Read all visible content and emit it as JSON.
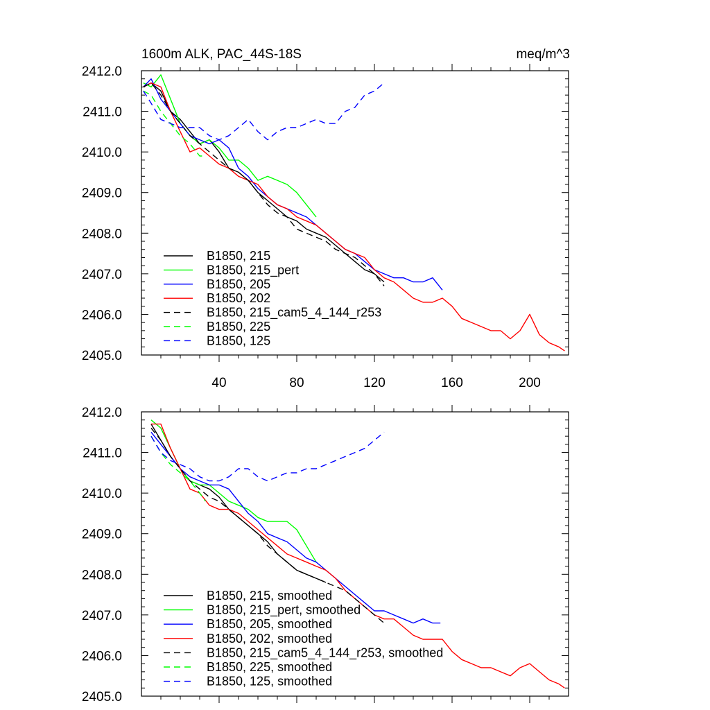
{
  "chart_data": [
    {
      "type": "line",
      "title": "1600m ALK, PAC_44S-18S",
      "units": "meq/m^3",
      "xlabel": "",
      "ylabel": "",
      "xlim": [
        0,
        220
      ],
      "ylim": [
        2405.0,
        2412.0
      ],
      "xticks": [
        40,
        80,
        120,
        160,
        200
      ],
      "xtick_labels": [
        "40",
        "80",
        "120",
        "160",
        "200"
      ],
      "yticks": [
        2405.0,
        2406.0,
        2407.0,
        2408.0,
        2409.0,
        2410.0,
        2411.0,
        2412.0
      ],
      "ytick_labels": [
        "2405.0",
        "2406.0",
        "2407.0",
        "2408.0",
        "2409.0",
        "2410.0",
        "2411.0",
        "2412.0"
      ],
      "legend_position": "bottom-left",
      "series": [
        {
          "name": "B1850, 215",
          "color": "#000000",
          "dash": "solid",
          "x": [
            1,
            5,
            10,
            15,
            20,
            25,
            30,
            35,
            40,
            45,
            50,
            55,
            60,
            65,
            70,
            75,
            80,
            85,
            90,
            95,
            100,
            105,
            110,
            115,
            120,
            125
          ],
          "y": [
            2411.6,
            2411.7,
            2411.5,
            2411.0,
            2410.8,
            2410.5,
            2410.2,
            2410.3,
            2410.0,
            2409.6,
            2409.5,
            2409.3,
            2409.0,
            2408.8,
            2408.6,
            2408.4,
            2408.3,
            2408.1,
            2408.0,
            2407.9,
            2407.7,
            2407.5,
            2407.3,
            2407.1,
            2407.0,
            2406.8
          ]
        },
        {
          "name": "B1850, 215_pert",
          "color": "#00ff00",
          "dash": "solid",
          "x": [
            1,
            5,
            10,
            15,
            20,
            25,
            30,
            35,
            40,
            45,
            50,
            55,
            60,
            65,
            70,
            75,
            80,
            85,
            90
          ],
          "y": [
            2411.7,
            2411.6,
            2411.9,
            2411.3,
            2410.7,
            2410.4,
            2410.2,
            2410.3,
            2410.1,
            2409.8,
            2409.8,
            2409.6,
            2409.3,
            2409.4,
            2409.3,
            2409.2,
            2409.0,
            2408.7,
            2408.4
          ]
        },
        {
          "name": "B1850, 205",
          "color": "#0000ff",
          "dash": "solid",
          "x": [
            1,
            5,
            10,
            15,
            20,
            25,
            30,
            35,
            40,
            45,
            50,
            55,
            60,
            65,
            70,
            75,
            80,
            85,
            90,
            95,
            100,
            105,
            110,
            115,
            120,
            125,
            130,
            135,
            140,
            145,
            150,
            155
          ],
          "y": [
            2411.6,
            2411.8,
            2411.3,
            2411.0,
            2410.7,
            2410.4,
            2410.3,
            2410.2,
            2410.3,
            2410.1,
            2409.6,
            2409.4,
            2409.1,
            2408.9,
            2408.7,
            2408.6,
            2408.5,
            2408.4,
            2408.2,
            2408.0,
            2407.8,
            2407.6,
            2407.5,
            2407.3,
            2407.1,
            2407.0,
            2406.9,
            2406.9,
            2406.8,
            2406.8,
            2406.9,
            2406.6
          ]
        },
        {
          "name": "B1850, 202",
          "color": "#ff0000",
          "dash": "solid",
          "x": [
            1,
            5,
            10,
            15,
            20,
            25,
            30,
            35,
            40,
            45,
            50,
            55,
            60,
            65,
            70,
            75,
            80,
            85,
            90,
            95,
            100,
            105,
            110,
            115,
            120,
            125,
            130,
            135,
            140,
            145,
            150,
            155,
            160,
            165,
            170,
            175,
            180,
            185,
            190,
            195,
            200,
            205,
            210,
            215,
            218
          ],
          "y": [
            2411.6,
            2411.7,
            2411.6,
            2411.0,
            2410.5,
            2410.0,
            2410.1,
            2409.9,
            2409.7,
            2409.6,
            2409.4,
            2409.3,
            2409.2,
            2408.9,
            2408.7,
            2408.6,
            2408.4,
            2408.3,
            2408.2,
            2408.0,
            2407.8,
            2407.6,
            2407.5,
            2407.4,
            2407.1,
            2406.9,
            2406.8,
            2406.6,
            2406.4,
            2406.3,
            2406.3,
            2406.4,
            2406.2,
            2405.9,
            2405.8,
            2405.7,
            2405.6,
            2405.6,
            2405.4,
            2405.6,
            2406.0,
            2405.5,
            2405.3,
            2405.2,
            2405.1
          ]
        },
        {
          "name": "B1850, 215_cam5_4_144_r253",
          "color": "#000000",
          "dash": "dashed",
          "x": [
            1,
            5,
            10,
            15,
            20,
            25,
            30,
            35,
            40,
            45,
            50,
            55,
            60,
            65,
            70,
            75,
            80,
            85,
            90,
            95,
            100,
            105,
            110,
            115,
            120,
            125
          ],
          "y": [
            2411.6,
            2411.7,
            2411.4,
            2411.0,
            2410.7,
            2410.4,
            2410.2,
            2410.0,
            2409.8,
            2409.6,
            2409.5,
            2409.3,
            2409.0,
            2408.7,
            2408.5,
            2408.4,
            2408.1,
            2408.0,
            2407.9,
            2407.8,
            2407.6,
            2407.5,
            2407.4,
            2407.2,
            2407.0,
            2406.7
          ]
        },
        {
          "name": "B1850, 225",
          "color": "#00ff00",
          "dash": "dashed",
          "x": [
            1,
            5,
            10,
            15,
            20,
            25,
            30,
            32
          ],
          "y": [
            2411.5,
            2411.4,
            2411.0,
            2410.7,
            2410.4,
            2410.2,
            2409.9,
            2409.9
          ]
        },
        {
          "name": "B1850, 125",
          "color": "#0000ff",
          "dash": "dashed",
          "x": [
            1,
            5,
            10,
            15,
            20,
            25,
            30,
            35,
            40,
            45,
            50,
            55,
            60,
            65,
            70,
            75,
            80,
            85,
            90,
            95,
            100,
            105,
            110,
            115,
            120,
            125
          ],
          "y": [
            2411.5,
            2411.2,
            2410.8,
            2410.7,
            2410.6,
            2410.6,
            2410.6,
            2410.4,
            2410.3,
            2410.4,
            2410.6,
            2410.8,
            2410.5,
            2410.3,
            2410.5,
            2410.6,
            2410.6,
            2410.7,
            2410.8,
            2410.7,
            2410.7,
            2411.0,
            2411.1,
            2411.4,
            2411.5,
            2411.7
          ]
        }
      ]
    },
    {
      "type": "line",
      "title": "",
      "xlabel": "",
      "ylabel": "",
      "xlim": [
        0,
        220
      ],
      "ylim": [
        2405.0,
        2412.0
      ],
      "xticks": [
        40,
        80,
        120,
        160,
        200
      ],
      "yticks": [
        2405.0,
        2406.0,
        2407.0,
        2408.0,
        2409.0,
        2410.0,
        2411.0,
        2412.0
      ],
      "ytick_labels": [
        "2405.0",
        "2406.0",
        "2407.0",
        "2408.0",
        "2409.0",
        "2410.0",
        "2411.0",
        "2412.0"
      ],
      "legend_position": "bottom-left",
      "series": [
        {
          "name": "B1850, 215, smoothed",
          "color": "#000000",
          "dash": "solid",
          "x": [
            5,
            10,
            15,
            20,
            25,
            30,
            35,
            40,
            45,
            50,
            55,
            60,
            65,
            70,
            75,
            80,
            85,
            90,
            95
          ],
          "y": [
            2411.7,
            2411.3,
            2410.9,
            2410.6,
            2410.3,
            2410.2,
            2410.1,
            2409.9,
            2409.6,
            2409.4,
            2409.2,
            2409.0,
            2408.8,
            2408.5,
            2408.3,
            2408.1,
            2408.0,
            2407.9,
            2407.8
          ]
        },
        {
          "name": "B1850, 215_pert, smoothed",
          "color": "#00ff00",
          "dash": "solid",
          "x": [
            5,
            10,
            15,
            20,
            25,
            30,
            35,
            40,
            45,
            50,
            55,
            60,
            65,
            70,
            75,
            80,
            85,
            90
          ],
          "y": [
            2411.8,
            2411.6,
            2411.1,
            2410.6,
            2410.3,
            2410.2,
            2410.2,
            2410.0,
            2409.8,
            2409.7,
            2409.6,
            2409.4,
            2409.3,
            2409.3,
            2409.3,
            2409.1,
            2408.7,
            2408.3
          ]
        },
        {
          "name": "B1850, 205, smoothed",
          "color": "#0000ff",
          "dash": "solid",
          "x": [
            5,
            10,
            15,
            20,
            25,
            30,
            35,
            40,
            45,
            50,
            55,
            60,
            65,
            70,
            75,
            80,
            85,
            90,
            95,
            100,
            105,
            110,
            115,
            120,
            125,
            130,
            135,
            140,
            145,
            150,
            154
          ],
          "y": [
            2411.5,
            2411.2,
            2410.9,
            2410.6,
            2410.4,
            2410.3,
            2410.2,
            2410.2,
            2410.1,
            2409.8,
            2409.5,
            2409.3,
            2409.0,
            2408.9,
            2408.8,
            2408.6,
            2408.4,
            2408.3,
            2408.1,
            2407.9,
            2407.7,
            2407.5,
            2407.3,
            2407.1,
            2407.1,
            2407.0,
            2406.9,
            2406.8,
            2406.9,
            2406.8,
            2406.8
          ]
        },
        {
          "name": "B1850, 202, smoothed",
          "color": "#ff0000",
          "dash": "solid",
          "x": [
            5,
            10,
            15,
            20,
            25,
            30,
            35,
            40,
            45,
            50,
            55,
            60,
            65,
            70,
            75,
            80,
            85,
            90,
            95,
            100,
            105,
            110,
            115,
            120,
            125,
            130,
            135,
            140,
            145,
            150,
            155,
            160,
            165,
            170,
            175,
            180,
            185,
            190,
            195,
            200,
            205,
            210,
            215,
            218
          ],
          "y": [
            2411.7,
            2411.7,
            2411.1,
            2410.6,
            2410.1,
            2410.0,
            2409.7,
            2409.6,
            2409.6,
            2409.5,
            2409.3,
            2409.1,
            2408.9,
            2408.7,
            2408.5,
            2408.4,
            2408.3,
            2408.2,
            2408.1,
            2407.9,
            2407.6,
            2407.4,
            2407.2,
            2407.0,
            2406.9,
            2406.9,
            2406.7,
            2406.5,
            2406.4,
            2406.4,
            2406.4,
            2406.1,
            2405.9,
            2405.8,
            2405.7,
            2405.7,
            2405.6,
            2405.5,
            2405.7,
            2405.8,
            2405.6,
            2405.4,
            2405.3,
            2405.2
          ]
        },
        {
          "name": "B1850, 215_cam5_4_144_r253, smoothed",
          "color": "#000000",
          "dash": "dashed",
          "x": [
            5,
            10,
            15,
            20,
            25,
            30,
            35,
            40,
            45,
            50,
            55,
            60,
            65,
            70,
            75,
            80,
            85,
            90,
            95,
            100,
            105,
            110,
            115,
            120,
            125
          ],
          "y": [
            2411.6,
            2411.3,
            2410.9,
            2410.6,
            2410.3,
            2410.1,
            2409.9,
            2409.8,
            2409.6,
            2409.4,
            2409.2,
            2409.0,
            2408.7,
            2408.5,
            2408.3,
            2408.1,
            2408.0,
            2407.9,
            2407.8,
            2407.7,
            2407.6,
            2407.4,
            2407.2,
            2407.0,
            2406.8
          ]
        },
        {
          "name": "B1850, 225, smoothed",
          "color": "#00ff00",
          "dash": "dashed",
          "x": [
            5,
            10,
            15,
            20,
            25,
            30,
            33
          ],
          "y": [
            2411.4,
            2411.0,
            2410.7,
            2410.5,
            2410.3,
            2410.0,
            2409.8
          ]
        },
        {
          "name": "B1850, 125, smoothed",
          "color": "#0000ff",
          "dash": "dashed",
          "x": [
            5,
            10,
            15,
            20,
            25,
            30,
            35,
            40,
            45,
            50,
            55,
            60,
            65,
            70,
            75,
            80,
            85,
            90,
            95,
            100,
            105,
            110,
            115,
            120,
            125
          ],
          "y": [
            2411.4,
            2411.0,
            2410.8,
            2410.7,
            2410.6,
            2410.4,
            2410.3,
            2410.3,
            2410.4,
            2410.6,
            2410.6,
            2410.4,
            2410.3,
            2410.4,
            2410.5,
            2410.5,
            2410.6,
            2410.6,
            2410.7,
            2410.8,
            2410.9,
            2411.0,
            2411.1,
            2411.3,
            2411.5
          ]
        }
      ]
    }
  ]
}
